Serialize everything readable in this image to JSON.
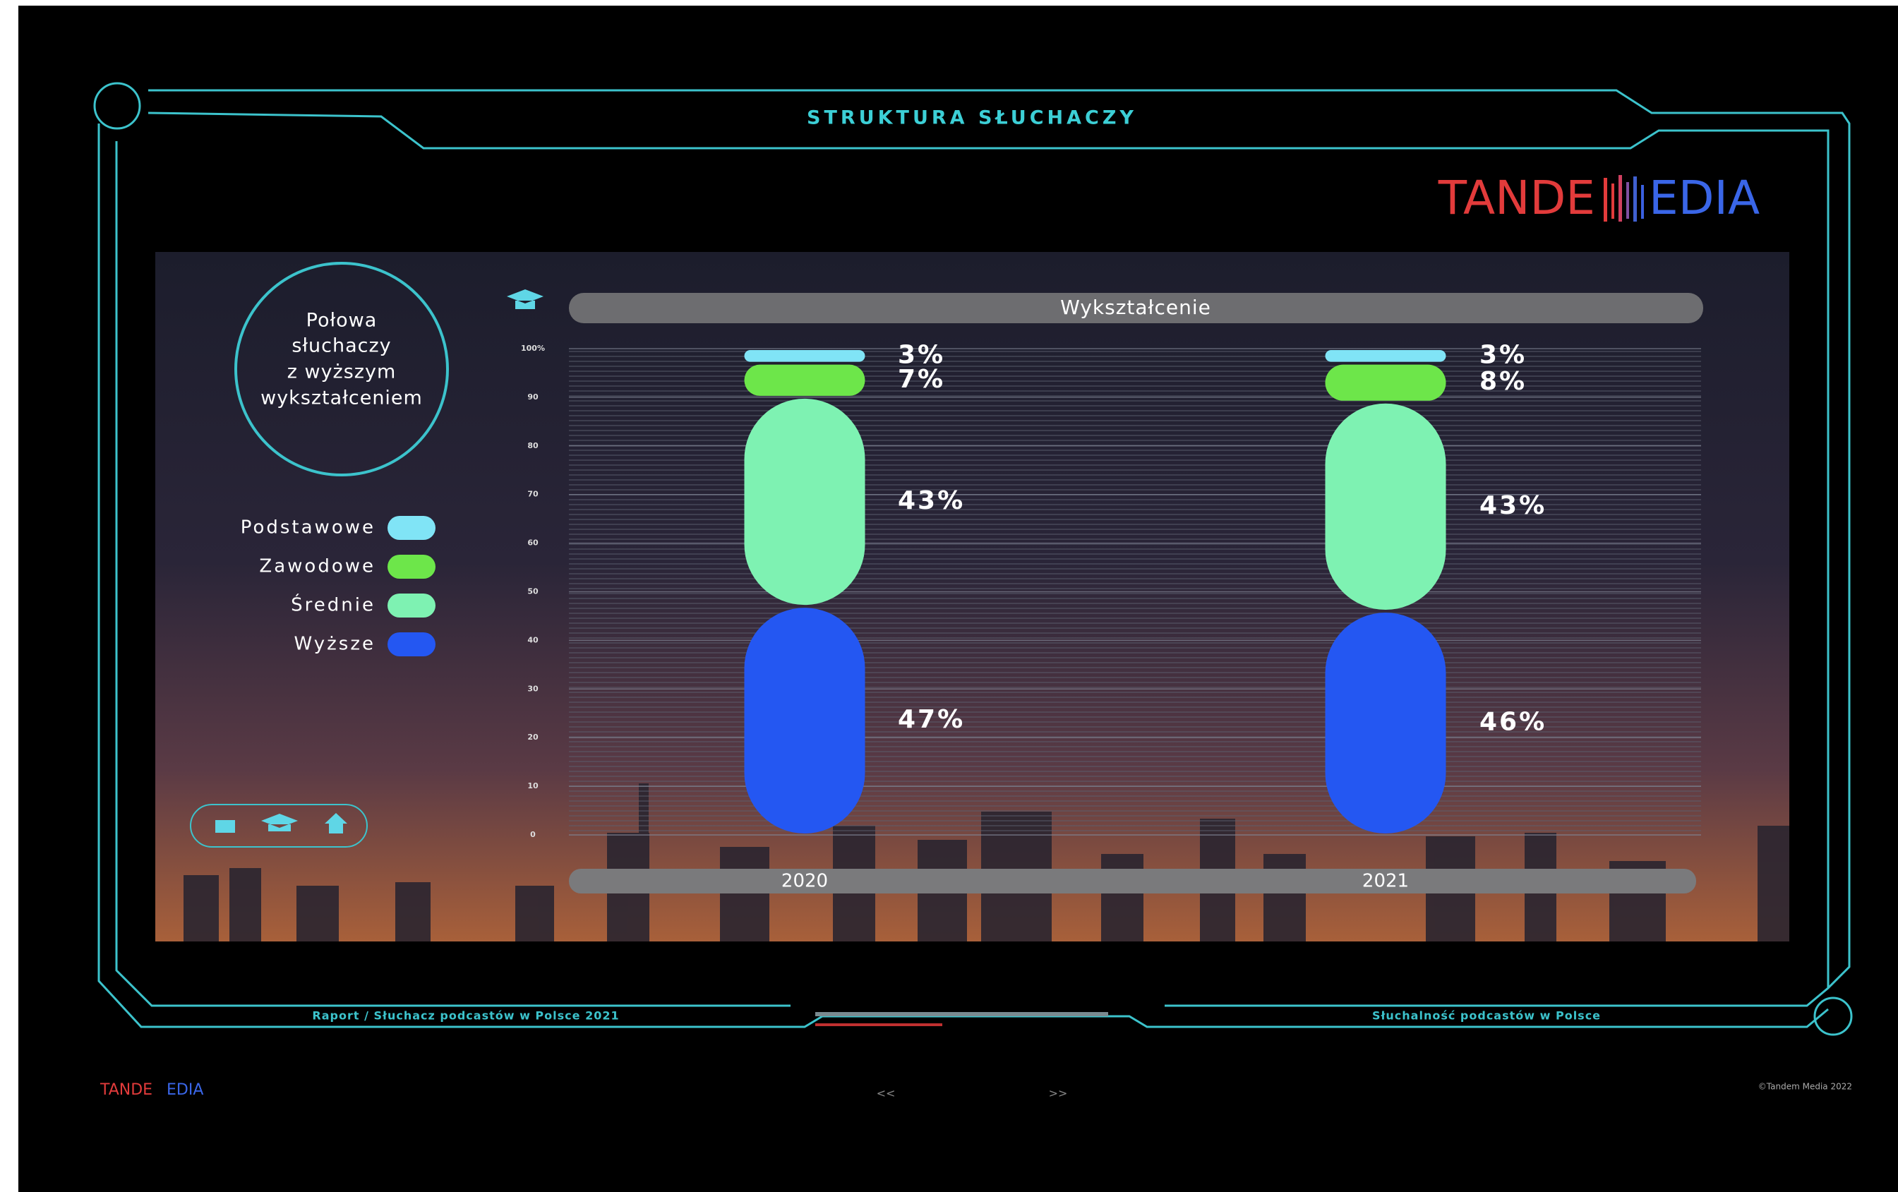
{
  "header": {
    "title": "STRUKTURA SŁUCHACZY",
    "logo_left": "TANDE",
    "logo_right": "EDIA"
  },
  "callout": {
    "lines": [
      "Połowa",
      "słuchaczy",
      "z wyższym",
      "wykształceniem"
    ]
  },
  "chart_data": {
    "type": "stacked_bar",
    "title": "Wykształcenie",
    "categories": [
      "2020",
      "2021"
    ],
    "series": [
      {
        "name": "Wyższe",
        "color": "#2457f2",
        "values": [
          47,
          46
        ],
        "value_labels": [
          "47%",
          "46%"
        ]
      },
      {
        "name": "Średnie",
        "color": "#7ef2b2",
        "values": [
          43,
          43
        ],
        "value_labels": [
          "43%",
          "43%"
        ]
      },
      {
        "name": "Zawodowe",
        "color": "#6de64a",
        "values": [
          7,
          8
        ],
        "value_labels": [
          "7%",
          "8%"
        ]
      },
      {
        "name": "Podstawowe",
        "color": "#80e4f6",
        "values": [
          3,
          3
        ],
        "value_labels": [
          "3%",
          "3%"
        ]
      }
    ],
    "ylim": [
      0,
      100
    ],
    "yticks": [
      0,
      10,
      20,
      30,
      40,
      50,
      60,
      70,
      80,
      90,
      {
        "value": 100,
        "label": "100%"
      }
    ],
    "grid": true
  },
  "footer": {
    "left": "Raport / Słuchacz podcastów w Polsce 2021",
    "right": "Słuchalność podcastów w Polsce",
    "prev": "<<",
    "next": ">>",
    "copyright": "©Tandem Media 2022",
    "logo_left": "TANDE",
    "logo_right": "EDIA"
  }
}
